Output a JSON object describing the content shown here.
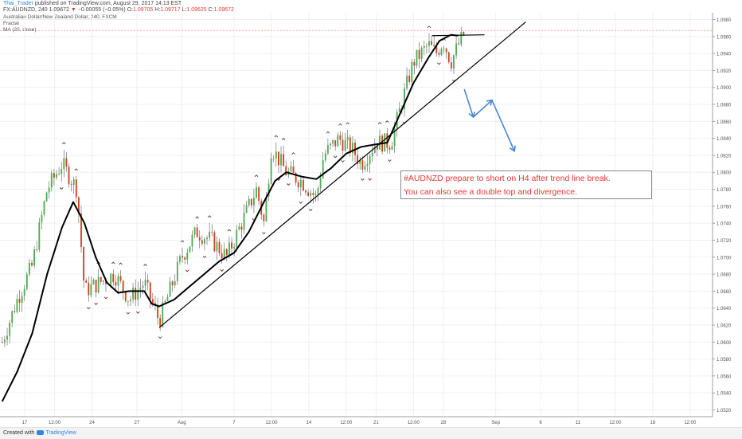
{
  "header": {
    "author": "Thai_Trader",
    "published": "published on TradingView.com, August 29, 2017 14:13 EST",
    "symbol": "FX:AUDNZD, 240",
    "price": "1.09672",
    "change_arrow": "▼",
    "change": "−0.00055 (−0.05%)",
    "o_label": "O:",
    "o": "1.09705",
    "h_label": "H:",
    "h": "1.09717",
    "l_label": "L:",
    "l": "1.09625",
    "c_label": "C:",
    "c": "1.09672"
  },
  "legend": {
    "instrument": "Australian Dollar/New Zealand Dollar, 240, FXCM",
    "indicator1": "Fractal",
    "indicator2": "MA (20, close)"
  },
  "annotation": {
    "line1": "#AUDNZD prepare to short on H4 after trend line break.",
    "line2": "You can also see a double top and divergence."
  },
  "footer": {
    "created": "Created with",
    "brand": "TradingView"
  },
  "colors": {
    "up": "#4caf50",
    "down": "#d2421f",
    "ma": "#000000",
    "arrow": "#4a86d4",
    "text_red": "#e53935",
    "grid": "#eef0f3"
  },
  "chart_data": {
    "type": "candlestick",
    "y_ticks": [
      "1.0980",
      "1.0960",
      "1.0940",
      "1.0920",
      "1.0900",
      "1.0880",
      "1.0860",
      "1.0840",
      "1.0820",
      "1.0800",
      "1.0780",
      "1.0760",
      "1.0740",
      "1.0720",
      "1.0700",
      "1.0680",
      "1.0660",
      "1.0640",
      "1.0620",
      "1.0600",
      "1.0580",
      "1.0560",
      "1.0540",
      "1.0520"
    ],
    "ylim": [
      1.0512,
      1.0988
    ],
    "x_ticks": [
      {
        "label": "17",
        "i": 3
      },
      {
        "label": "12:00",
        "i": 7
      },
      {
        "label": "24",
        "i": 12
      },
      {
        "label": "27",
        "i": 18
      },
      {
        "label": "Aug",
        "i": 24
      },
      {
        "label": "7",
        "i": 31
      },
      {
        "label": "12:00",
        "i": 36
      },
      {
        "label": "14",
        "i": 41
      },
      {
        "label": "12:00",
        "i": 46
      },
      {
        "label": "21",
        "i": 50
      },
      {
        "label": "12:00",
        "i": 55
      },
      {
        "label": "28",
        "i": 59
      },
      {
        "label": "Sep",
        "i": 66
      },
      {
        "label": "6",
        "i": 72
      },
      {
        "label": "11",
        "i": 77
      },
      {
        "label": "12:00",
        "i": 82
      },
      {
        "label": "18",
        "i": 87
      },
      {
        "label": "12:00",
        "i": 92
      }
    ],
    "close_path": [
      {
        "i": 0,
        "v": 1.06
      },
      {
        "i": 2,
        "v": 1.065
      },
      {
        "i": 4,
        "v": 1.069
      },
      {
        "i": 6,
        "v": 1.078
      },
      {
        "i": 8,
        "v": 1.081
      },
      {
        "i": 10,
        "v": 1.078
      },
      {
        "i": 11,
        "v": 1.066
      },
      {
        "i": 13,
        "v": 1.067
      },
      {
        "i": 15,
        "v": 1.068
      },
      {
        "i": 17,
        "v": 1.065
      },
      {
        "i": 19,
        "v": 1.067
      },
      {
        "i": 21,
        "v": 1.0625
      },
      {
        "i": 24,
        "v": 1.07
      },
      {
        "i": 26,
        "v": 1.073
      },
      {
        "i": 28,
        "v": 1.072
      },
      {
        "i": 30,
        "v": 1.07
      },
      {
        "i": 32,
        "v": 1.074
      },
      {
        "i": 34,
        "v": 1.078
      },
      {
        "i": 35,
        "v": 1.074
      },
      {
        "i": 36,
        "v": 1.083
      },
      {
        "i": 38,
        "v": 1.08
      },
      {
        "i": 40,
        "v": 1.079
      },
      {
        "i": 42,
        "v": 1.077
      },
      {
        "i": 43,
        "v": 1.082
      },
      {
        "i": 45,
        "v": 1.084
      },
      {
        "i": 47,
        "v": 1.0825
      },
      {
        "i": 48,
        "v": 1.081
      },
      {
        "i": 50,
        "v": 1.0835
      },
      {
        "i": 52,
        "v": 1.0835
      },
      {
        "i": 54,
        "v": 1.09
      },
      {
        "i": 55,
        "v": 1.093
      },
      {
        "i": 57,
        "v": 1.095
      },
      {
        "i": 58,
        "v": 1.094
      },
      {
        "i": 59,
        "v": 1.0955
      },
      {
        "i": 60,
        "v": 1.093
      },
      {
        "i": 61,
        "v": 1.095
      },
      {
        "i": 62,
        "v": 1.0967
      }
    ],
    "ma_20": [
      {
        "i": 0,
        "v": 1.053
      },
      {
        "i": 2,
        "v": 1.0565
      },
      {
        "i": 4,
        "v": 1.061
      },
      {
        "i": 6,
        "v": 1.068
      },
      {
        "i": 8,
        "v": 1.0735
      },
      {
        "i": 9.5,
        "v": 1.0765
      },
      {
        "i": 11,
        "v": 1.074
      },
      {
        "i": 12.5,
        "v": 1.07
      },
      {
        "i": 14,
        "v": 1.067
      },
      {
        "i": 15.5,
        "v": 1.0658
      },
      {
        "i": 17,
        "v": 1.066
      },
      {
        "i": 19,
        "v": 1.066
      },
      {
        "i": 20,
        "v": 1.0645
      },
      {
        "i": 21,
        "v": 1.0642
      },
      {
        "i": 23,
        "v": 1.065
      },
      {
        "i": 25,
        "v": 1.0665
      },
      {
        "i": 27,
        "v": 1.068
      },
      {
        "i": 29,
        "v": 1.0695
      },
      {
        "i": 31,
        "v": 1.0705
      },
      {
        "i": 33,
        "v": 1.073
      },
      {
        "i": 35,
        "v": 1.0765
      },
      {
        "i": 36.5,
        "v": 1.079
      },
      {
        "i": 38,
        "v": 1.08
      },
      {
        "i": 40,
        "v": 1.0795
      },
      {
        "i": 42,
        "v": 1.0792
      },
      {
        "i": 44,
        "v": 1.0805
      },
      {
        "i": 46,
        "v": 1.0822
      },
      {
        "i": 48,
        "v": 1.083
      },
      {
        "i": 50,
        "v": 1.0833
      },
      {
        "i": 51.5,
        "v": 1.0835
      },
      {
        "i": 53,
        "v": 1.0865
      },
      {
        "i": 55,
        "v": 1.0905
      },
      {
        "i": 57,
        "v": 1.0935
      },
      {
        "i": 58.5,
        "v": 1.0955
      },
      {
        "i": 60,
        "v": 1.0962
      },
      {
        "i": 61,
        "v": 1.0961
      }
    ],
    "trend_line": [
      {
        "i": 21,
        "v": 1.0617
      },
      {
        "i": 70,
        "v": 1.0977
      }
    ],
    "resistance_line": [
      {
        "i": 57.5,
        "v": 1.0961
      },
      {
        "i": 64.5,
        "v": 1.0962
      }
    ],
    "last_price": 1.09672,
    "projection": [
      {
        "i": 61.8,
        "v": 1.0898
      },
      {
        "i": 63,
        "v": 1.0865
      },
      {
        "i": 65.5,
        "v": 1.0885
      },
      {
        "i": 68.5,
        "v": 1.0825
      }
    ]
  }
}
